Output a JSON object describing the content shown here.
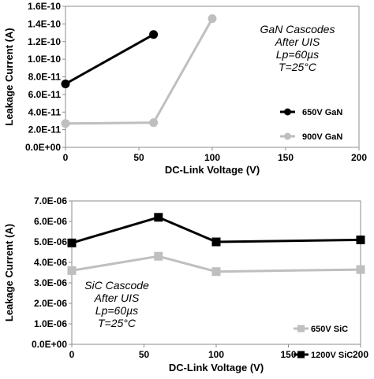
{
  "chart_data": [
    {
      "type": "line",
      "xlabel": "DC-Link Voltage (V)",
      "ylabel": "Leakage Current (A)",
      "xlim": [
        0,
        200
      ],
      "xticks": [
        "0",
        "50",
        "100",
        "150",
        "200"
      ],
      "ylim": [
        0,
        1.6e-10
      ],
      "yticks": [
        "0.0E+00",
        "2.0E-11",
        "4.0E-11",
        "6.0E-11",
        "8.0E-11",
        "1.0E-10",
        "1.2E-10",
        "1.4E-10",
        "1.6E-10"
      ],
      "grid": false,
      "legend_position": "bottom-right",
      "annotation": [
        "GaN Cascodes",
        "After UIS",
        "Lp=60µs",
        "T=25°C"
      ],
      "series": [
        {
          "name": "650V GaN",
          "color": "#000000",
          "marker": "circle",
          "x": [
            0,
            60
          ],
          "y": [
            7.2e-11,
            1.28e-10
          ]
        },
        {
          "name": "900V GaN",
          "color": "#bfbfbf",
          "marker": "circle",
          "x": [
            0,
            60,
            100
          ],
          "y": [
            2.7e-11,
            2.8e-11,
            1.46e-10
          ]
        }
      ]
    },
    {
      "type": "line",
      "xlabel": "DC-Link Voltage (V)",
      "ylabel": "Leakage Current (A)",
      "xlim": [
        0,
        200
      ],
      "xticks": [
        "0",
        "50",
        "100",
        "150",
        "200"
      ],
      "ylim": [
        0,
        7e-06
      ],
      "yticks": [
        "0.0E+00",
        "1.0E-06",
        "2.0E-06",
        "3.0E-06",
        "4.0E-06",
        "5.0E-06",
        "6.0E-06",
        "7.0E-06"
      ],
      "grid": false,
      "legend_position": "bottom-right",
      "annotation": [
        "SiC Cascode",
        "After UIS",
        "Lp=60µs",
        "T=25°C"
      ],
      "series": [
        {
          "name": "650V SiC",
          "color": "#bfbfbf",
          "marker": "square",
          "x": [
            0,
            60,
            100,
            200
          ],
          "y": [
            3.6e-06,
            4.3e-06,
            3.55e-06,
            3.65e-06
          ]
        },
        {
          "name": "1200V SiC",
          "color": "#000000",
          "marker": "square",
          "x": [
            0,
            60,
            100,
            200
          ],
          "y": [
            4.95e-06,
            6.2e-06,
            5e-06,
            5.1e-06
          ]
        }
      ]
    }
  ]
}
